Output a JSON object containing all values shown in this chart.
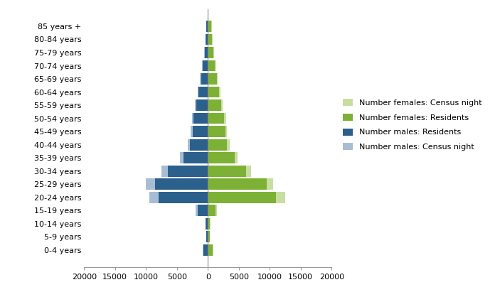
{
  "age_groups": [
    "0-4 years",
    "5-9 years",
    "10-14 years",
    "15-19 years",
    "20-24 years",
    "25-29 years",
    "30-34 years",
    "35-39 years",
    "40-44 years",
    "45-49 years",
    "50-54 years",
    "55-59 years",
    "60-64 years",
    "65-69 years",
    "70-74 years",
    "75-79 years",
    "80-84 years",
    "85 years +"
  ],
  "males_census_night": [
    800,
    300,
    400,
    2000,
    9500,
    10000,
    7500,
    4500,
    3200,
    2800,
    2600,
    2100,
    1700,
    1300,
    900,
    600,
    400,
    300
  ],
  "males_residents": [
    750,
    280,
    370,
    1700,
    8000,
    8500,
    6500,
    4000,
    2900,
    2500,
    2300,
    1900,
    1500,
    1100,
    800,
    520,
    350,
    250
  ],
  "females_census_night": [
    900,
    300,
    380,
    1500,
    12500,
    10500,
    7000,
    4800,
    3500,
    3100,
    2900,
    2400,
    2000,
    1600,
    1300,
    1000,
    800,
    600
  ],
  "females_residents": [
    820,
    270,
    350,
    1200,
    11000,
    9500,
    6200,
    4300,
    3100,
    2800,
    2600,
    2200,
    1800,
    1400,
    1100,
    870,
    700,
    520
  ],
  "color_females_census": "#c8dea0",
  "color_females_residents": "#7db135",
  "color_males_residents": "#2b5f8c",
  "color_males_census": "#a8bdd4",
  "xlim": [
    -20000,
    20000
  ],
  "xticks": [
    -20000,
    -15000,
    -10000,
    -5000,
    0,
    5000,
    10000,
    15000,
    20000
  ],
  "xtick_labels": [
    "20000",
    "15000",
    "10000",
    "5000",
    "0",
    "5000",
    "10000",
    "15000",
    "20000"
  ],
  "bar_height": 0.85,
  "legend_labels": [
    "Number females: Census night",
    "Number females: Residents",
    "Number males: Residents",
    "Number males: Census night"
  ],
  "legend_colors": [
    "#c8dea0",
    "#7db135",
    "#2b5f8c",
    "#a8bdd4"
  ],
  "figsize": [
    6.96,
    4.18
  ],
  "dpi": 100
}
